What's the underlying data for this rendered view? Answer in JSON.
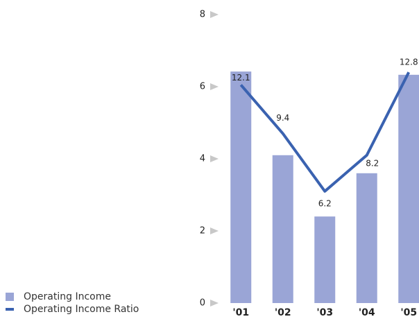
{
  "chart_data": {
    "type": "bar",
    "categories": [
      "'01",
      "'02",
      "'03",
      "'04",
      "'05"
    ],
    "series": [
      {
        "name": "Operating Income",
        "type": "bar",
        "color": "#9aa5d6",
        "values": [
          6.42,
          4.1,
          2.4,
          3.6,
          6.33
        ]
      },
      {
        "name": "Operating Income Ratio",
        "type": "line",
        "axis": "y2",
        "color": "#3a62b0",
        "values": [
          12.1,
          9.4,
          6.2,
          8.2,
          12.8
        ]
      }
    ],
    "ylim": [
      0,
      8
    ],
    "yticks": [
      0,
      2,
      4,
      6,
      8
    ],
    "y2lim": [
      0,
      16
    ]
  }
}
